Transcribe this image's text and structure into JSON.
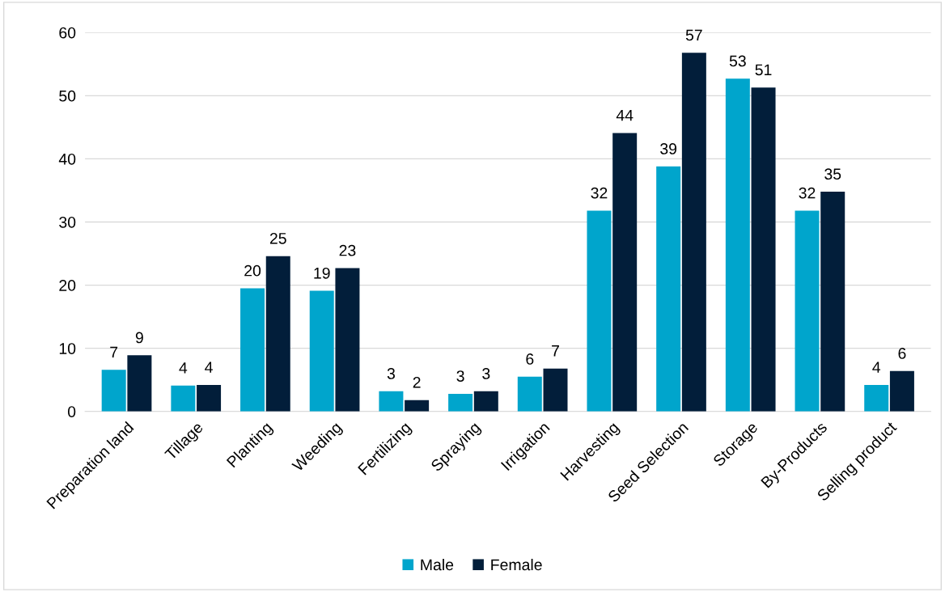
{
  "chart_data": {
    "type": "bar",
    "categories": [
      "Preparation land",
      "Tillage",
      "Planting",
      "Weeding",
      "Fertilizing",
      "Spraying",
      "Irrigation",
      "Harvesting",
      "Seed Selection",
      "Storage",
      "By-Products",
      "Selling product"
    ],
    "series": [
      {
        "name": "Male",
        "color": "#00a5cc",
        "values": [
          6.6,
          4.1,
          19.5,
          19.1,
          3.2,
          2.8,
          5.5,
          31.8,
          38.8,
          52.7,
          31.8,
          4.2
        ],
        "value_labels": [
          "7",
          "4",
          "20",
          "19",
          "3",
          "3",
          "6",
          "32",
          "39",
          "53",
          "32",
          "4"
        ]
      },
      {
        "name": "Female",
        "color": "#021e3a",
        "values": [
          8.9,
          4.2,
          24.6,
          22.7,
          1.8,
          3.2,
          6.8,
          44.1,
          56.8,
          51.3,
          34.8,
          6.4
        ],
        "value_labels": [
          "9",
          "4",
          "25",
          "23",
          "2",
          "3",
          "7",
          "44",
          "57",
          "51",
          "35",
          "6"
        ]
      }
    ],
    "ylim": [
      0,
      60
    ],
    "yticks": [
      0,
      10,
      20,
      30,
      40,
      50,
      60
    ],
    "grid": "y",
    "legend": "bottom"
  }
}
